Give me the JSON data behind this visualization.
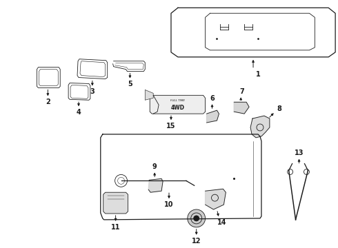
{
  "bg_color": "#ffffff",
  "line_color": "#1a1a1a",
  "parts_labels": [
    "1",
    "2",
    "3",
    "4",
    "5",
    "6",
    "7",
    "8",
    "9",
    "10",
    "11",
    "12",
    "13",
    "14",
    "15"
  ]
}
